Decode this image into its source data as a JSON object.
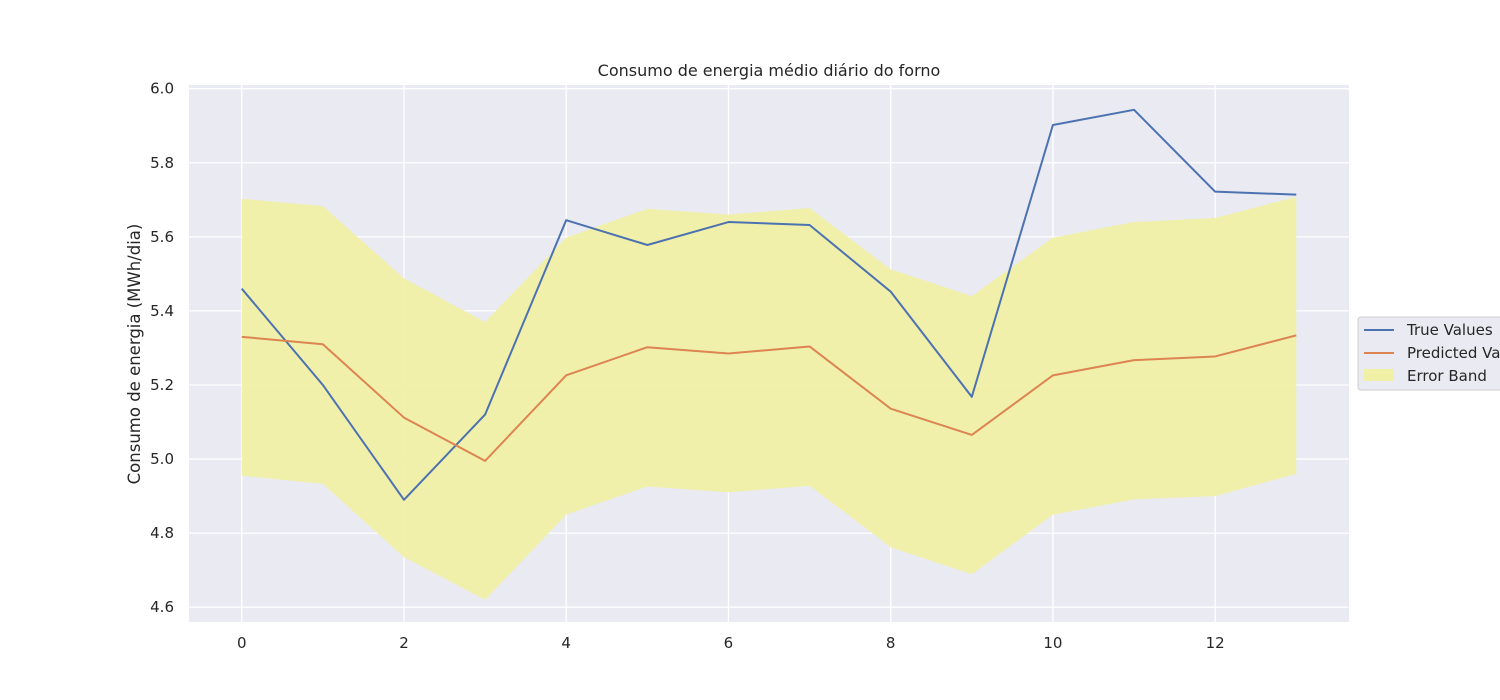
{
  "chart_data": {
    "type": "line",
    "title": "Consumo de energia médio diário do forno",
    "xlabel": "",
    "ylabel": "Consumo de energia (MWh/dia)",
    "xlim": [
      -0.65,
      13.65
    ],
    "ylim": [
      4.56,
      6.01
    ],
    "x_ticks": [
      0,
      2,
      4,
      6,
      8,
      10,
      12
    ],
    "y_ticks": [
      4.6,
      4.8,
      5.0,
      5.2,
      5.4,
      5.6,
      5.8,
      6.0
    ],
    "x_tick_labels": [
      "0",
      "2",
      "4",
      "6",
      "8",
      "10",
      "12"
    ],
    "y_tick_labels": [
      "4.6",
      "4.8",
      "5.0",
      "5.2",
      "5.4",
      "5.6",
      "5.8",
      "6.0"
    ],
    "grid": true,
    "legend_position": "right, outside plot",
    "x": [
      0,
      1,
      2,
      3,
      4,
      5,
      6,
      7,
      8,
      9,
      10,
      11,
      12,
      13
    ],
    "series": [
      {
        "name": "True Values",
        "color": "#4c72b0",
        "values": [
          5.46,
          5.2,
          4.89,
          5.12,
          5.645,
          5.578,
          5.64,
          5.632,
          5.452,
          5.168,
          5.902,
          5.943,
          5.722,
          5.714
        ]
      },
      {
        "name": "Predicted Values",
        "color": "#dd8452",
        "values": [
          5.33,
          5.31,
          5.112,
          4.995,
          5.226,
          5.302,
          5.285,
          5.304,
          5.136,
          5.065,
          5.226,
          5.267,
          5.277,
          5.334
        ]
      }
    ],
    "error_band": {
      "name": "Error Band",
      "color": "#f0f0a6",
      "lower": [
        4.955,
        4.933,
        4.735,
        4.62,
        4.85,
        4.926,
        4.91,
        4.928,
        4.762,
        4.689,
        4.85,
        4.891,
        4.9,
        4.96
      ],
      "upper": [
        5.703,
        5.683,
        5.488,
        5.37,
        5.598,
        5.676,
        5.66,
        5.678,
        5.512,
        5.44,
        5.598,
        5.64,
        5.651,
        5.708
      ]
    },
    "legend_visible_labels": [
      "True Values",
      "Predicted Va",
      "Error Band"
    ]
  }
}
